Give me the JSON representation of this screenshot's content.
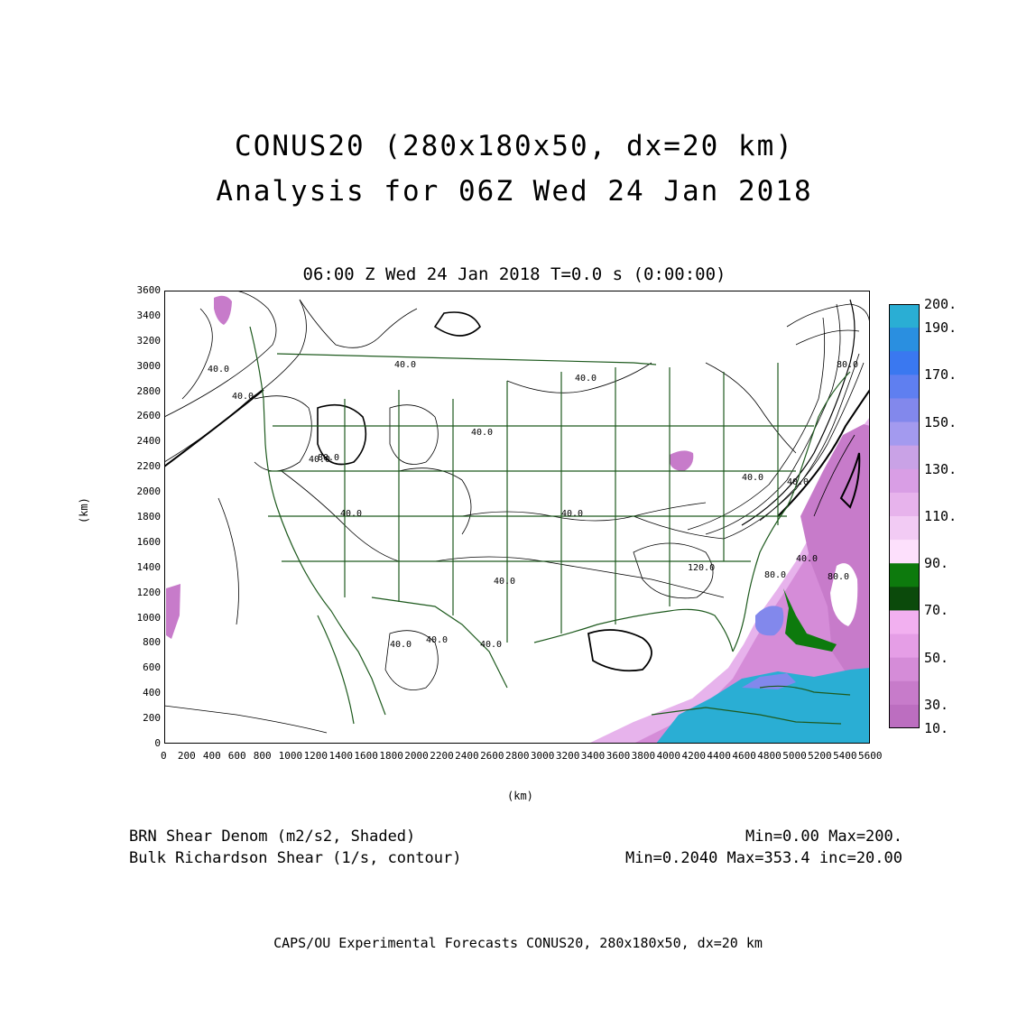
{
  "title_line1": "CONUS20 (280x180x50, dx=20 km)",
  "title_line2": "Analysis for 06Z Wed 24 Jan 2018",
  "valid_time": "06:00 Z Wed 24 Jan 2018    T=0.0 s (0:00:00)",
  "axes": {
    "xlabel": "(km)",
    "ylabel": "(km)",
    "x_ticks": [
      "0",
      "200",
      "400",
      "600",
      "800",
      "1000",
      "1200",
      "1400",
      "1600",
      "1800",
      "2000",
      "2200",
      "2400",
      "2600",
      "2800",
      "3000",
      "3200",
      "3400",
      "3600",
      "3800",
      "4000",
      "4200",
      "4400",
      "4600",
      "4800",
      "5000",
      "5200",
      "5400",
      "5600"
    ],
    "y_ticks": [
      "0",
      "200",
      "400",
      "600",
      "800",
      "1000",
      "1200",
      "1400",
      "1600",
      "1800",
      "2000",
      "2200",
      "2400",
      "2600",
      "2800",
      "3000",
      "3200",
      "3400",
      "3600"
    ],
    "xlim": [
      0,
      5600
    ],
    "ylim": [
      0,
      3600
    ]
  },
  "contour_labels": [
    "40.0",
    "40.0",
    "40.0",
    "40.0",
    "80.0",
    "40.0",
    "40.0",
    "40.0",
    "80.0",
    "40.0",
    "40.0",
    "120.0",
    "40.0",
    "40.0",
    "40.0",
    "40.0",
    "80.0",
    "80.0",
    "40.0",
    "40.0"
  ],
  "colorbar": {
    "labels": [
      "200.",
      "190.",
      "170.",
      "150.",
      "130.",
      "110.",
      "90.",
      "70.",
      "50.",
      "30.",
      "10."
    ],
    "colors": [
      "#2aaed4",
      "#2a8fe0",
      "#3a78f0",
      "#5f7ff0",
      "#8288ec",
      "#a39aef",
      "#c9a2e6",
      "#d99ee5",
      "#e7b3ec",
      "#f2cbf4",
      "#fde0fc",
      "#0d7a0d",
      "#0b4a0b",
      "#f2b0f0",
      "#e59ee6",
      "#d58cd8",
      "#c77bca",
      "#bc6ec0"
    ]
  },
  "fields": {
    "shaded": "BRN Shear Denom (m2/s2, Shaded)",
    "shaded_range": "Min=0.00 Max=200.",
    "contour": "Bulk Richardson Shear (1/s, contour)",
    "contour_range": "Min=0.2040 Max=353.4 inc=20.00"
  },
  "footer": "CAPS/OU Experimental Forecasts  CONUS20, 280x180x50, dx=20 km"
}
